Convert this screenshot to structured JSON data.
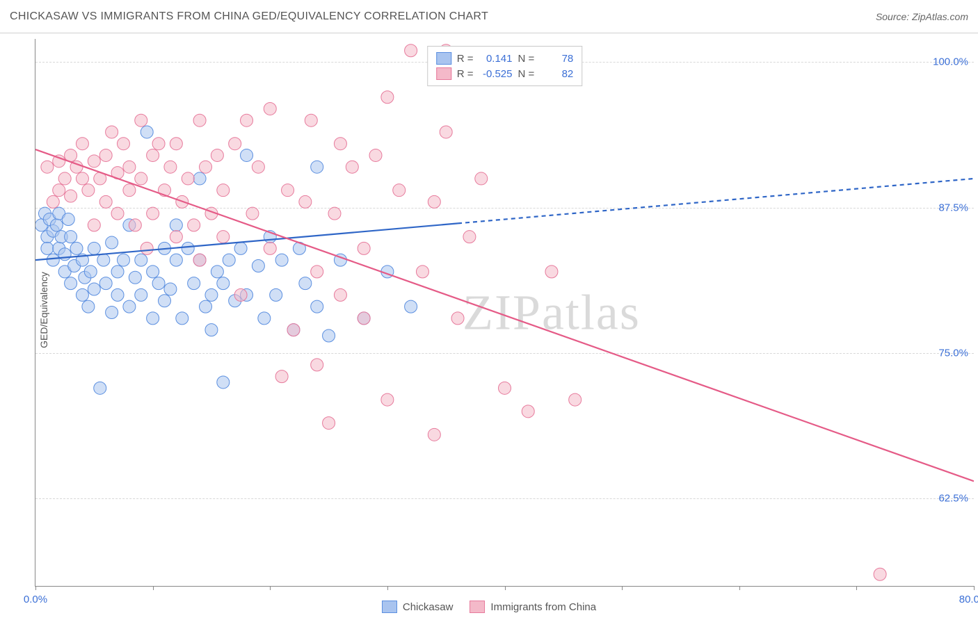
{
  "header": {
    "title": "CHICKASAW VS IMMIGRANTS FROM CHINA GED/EQUIVALENCY CORRELATION CHART",
    "source_prefix": "Source: ",
    "source": "ZipAtlas.com"
  },
  "watermark": {
    "part1": "ZIP",
    "part2": "atlas"
  },
  "chart": {
    "type": "scatter",
    "ylabel": "GED/Equivalency",
    "xlim": [
      0,
      80
    ],
    "ylim": [
      55,
      102
    ],
    "y_gridlines": [
      62.5,
      75.0,
      87.5,
      100.0
    ],
    "y_tick_labels": [
      "62.5%",
      "75.0%",
      "87.5%",
      "100.0%"
    ],
    "x_ticks": [
      0,
      10,
      20,
      30,
      40,
      50,
      60,
      70,
      80
    ],
    "x_tick_labels": {
      "0": "0.0%",
      "80": "80.0%"
    },
    "background_color": "#ffffff",
    "grid_color": "#d8d8d8",
    "axis_color": "#888888",
    "marker_radius": 9,
    "marker_opacity": 0.55,
    "line_width": 2.2,
    "series": [
      {
        "name": "Chickasaw",
        "color_fill": "#a9c4ef",
        "color_stroke": "#5b8fe0",
        "line_color": "#2f66c7",
        "r_value": "0.141",
        "n_value": "78",
        "trend": {
          "x1": 0,
          "y1": 83.0,
          "x2": 80,
          "y2": 90.0,
          "solid_until_x": 36
        },
        "points": [
          [
            0.5,
            86
          ],
          [
            0.8,
            87
          ],
          [
            1,
            85
          ],
          [
            1,
            84
          ],
          [
            1.2,
            86.5
          ],
          [
            1.5,
            83
          ],
          [
            1.5,
            85.5
          ],
          [
            1.8,
            86
          ],
          [
            2,
            84
          ],
          [
            2,
            87
          ],
          [
            2.2,
            85
          ],
          [
            2.5,
            82
          ],
          [
            2.5,
            83.5
          ],
          [
            2.8,
            86.5
          ],
          [
            3,
            81
          ],
          [
            3,
            85
          ],
          [
            3.3,
            82.5
          ],
          [
            3.5,
            84
          ],
          [
            4,
            80
          ],
          [
            4,
            83
          ],
          [
            4.2,
            81.5
          ],
          [
            4.5,
            79
          ],
          [
            4.7,
            82
          ],
          [
            5,
            84
          ],
          [
            5,
            80.5
          ],
          [
            5.5,
            72
          ],
          [
            5.8,
            83
          ],
          [
            6,
            81
          ],
          [
            6.5,
            78.5
          ],
          [
            6.5,
            84.5
          ],
          [
            7,
            80
          ],
          [
            7,
            82
          ],
          [
            7.5,
            83
          ],
          [
            8,
            79
          ],
          [
            8,
            86
          ],
          [
            8.5,
            81.5
          ],
          [
            9,
            80
          ],
          [
            9,
            83
          ],
          [
            9.5,
            94
          ],
          [
            10,
            78
          ],
          [
            10,
            82
          ],
          [
            10.5,
            81
          ],
          [
            11,
            79.5
          ],
          [
            11,
            84
          ],
          [
            11.5,
            80.5
          ],
          [
            12,
            83
          ],
          [
            12,
            86
          ],
          [
            12.5,
            78
          ],
          [
            13,
            84
          ],
          [
            13.5,
            81
          ],
          [
            14,
            90
          ],
          [
            14,
            83
          ],
          [
            14.5,
            79
          ],
          [
            15,
            80
          ],
          [
            15,
            77
          ],
          [
            15.5,
            82
          ],
          [
            16,
            72.5
          ],
          [
            16,
            81
          ],
          [
            16.5,
            83
          ],
          [
            17,
            79.5
          ],
          [
            17.5,
            84
          ],
          [
            18,
            80
          ],
          [
            18,
            92
          ],
          [
            19,
            82.5
          ],
          [
            19.5,
            78
          ],
          [
            20,
            85
          ],
          [
            20.5,
            80
          ],
          [
            21,
            83
          ],
          [
            22,
            77
          ],
          [
            22.5,
            84
          ],
          [
            23,
            81
          ],
          [
            24,
            79
          ],
          [
            24,
            91
          ],
          [
            25,
            76.5
          ],
          [
            26,
            83
          ],
          [
            28,
            78
          ],
          [
            30,
            82
          ],
          [
            32,
            79
          ]
        ]
      },
      {
        "name": "Immigrants from China",
        "color_fill": "#f4b9c9",
        "color_stroke": "#e77a9c",
        "line_color": "#e55b87",
        "r_value": "-0.525",
        "n_value": "82",
        "trend": {
          "x1": 0,
          "y1": 92.5,
          "x2": 80,
          "y2": 64.0,
          "solid_until_x": 80
        },
        "points": [
          [
            1,
            91
          ],
          [
            1.5,
            88
          ],
          [
            2,
            91.5
          ],
          [
            2,
            89
          ],
          [
            2.5,
            90
          ],
          [
            3,
            92
          ],
          [
            3,
            88.5
          ],
          [
            3.5,
            91
          ],
          [
            4,
            90
          ],
          [
            4,
            93
          ],
          [
            4.5,
            89
          ],
          [
            5,
            86
          ],
          [
            5,
            91.5
          ],
          [
            5.5,
            90
          ],
          [
            6,
            88
          ],
          [
            6,
            92
          ],
          [
            6.5,
            94
          ],
          [
            7,
            90.5
          ],
          [
            7,
            87
          ],
          [
            7.5,
            93
          ],
          [
            8,
            89
          ],
          [
            8,
            91
          ],
          [
            8.5,
            86
          ],
          [
            9,
            95
          ],
          [
            9,
            90
          ],
          [
            9.5,
            84
          ],
          [
            10,
            92
          ],
          [
            10,
            87
          ],
          [
            10.5,
            93
          ],
          [
            11,
            89
          ],
          [
            11.5,
            91
          ],
          [
            12,
            85
          ],
          [
            12,
            93
          ],
          [
            12.5,
            88
          ],
          [
            13,
            90
          ],
          [
            13.5,
            86
          ],
          [
            14,
            95
          ],
          [
            14,
            83
          ],
          [
            14.5,
            91
          ],
          [
            15,
            87
          ],
          [
            15.5,
            92
          ],
          [
            16,
            85
          ],
          [
            16,
            89
          ],
          [
            17,
            93
          ],
          [
            17.5,
            80
          ],
          [
            18,
            95
          ],
          [
            18.5,
            87
          ],
          [
            19,
            91
          ],
          [
            20,
            84
          ],
          [
            20,
            96
          ],
          [
            21,
            73
          ],
          [
            21.5,
            89
          ],
          [
            22,
            77
          ],
          [
            23,
            88
          ],
          [
            23.5,
            95
          ],
          [
            24,
            82
          ],
          [
            25,
            69
          ],
          [
            25.5,
            87
          ],
          [
            26,
            80
          ],
          [
            27,
            91
          ],
          [
            28,
            78
          ],
          [
            28,
            84
          ],
          [
            30,
            97
          ],
          [
            30,
            71
          ],
          [
            31,
            89
          ],
          [
            32,
            101
          ],
          [
            33,
            82
          ],
          [
            34,
            68
          ],
          [
            35,
            101
          ],
          [
            35,
            94
          ],
          [
            36,
            78
          ],
          [
            37,
            85
          ],
          [
            38,
            90
          ],
          [
            40,
            72
          ],
          [
            42,
            70
          ],
          [
            44,
            82
          ],
          [
            46,
            71
          ],
          [
            72,
            56
          ],
          [
            34,
            88
          ],
          [
            29,
            92
          ],
          [
            26,
            93
          ],
          [
            24,
            74
          ]
        ]
      }
    ]
  },
  "legend_top": {
    "r_label": "R =",
    "n_label": "N ="
  },
  "legend_bottom": {
    "items": [
      "Chickasaw",
      "Immigrants from China"
    ]
  }
}
